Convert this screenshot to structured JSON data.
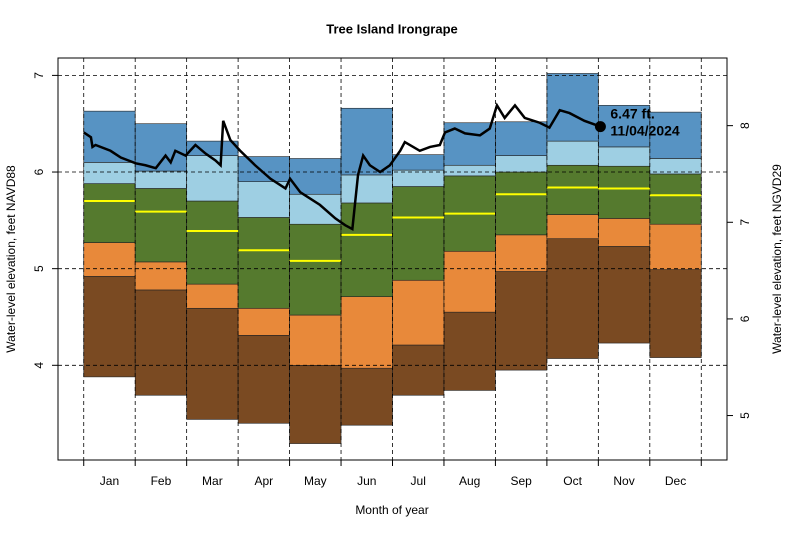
{
  "chart_data": {
    "type": "percentile-bands",
    "title": "Tree Island Irongrape",
    "x_label": "Month of year",
    "y_label": "Water-level elevation, feet NAVD88",
    "y2_label": "Water-level elevation, feet NGVD29",
    "categories": [
      "Jan",
      "Feb",
      "Mar",
      "Apr",
      "May",
      "Jun",
      "Jul",
      "Aug",
      "Sep",
      "Oct",
      "Nov",
      "Dec"
    ],
    "xlim": [
      -0.5,
      12.5
    ],
    "ylim": [
      3.02,
      7.18
    ],
    "yticks": [
      4,
      5,
      6,
      7
    ],
    "y2lim": [
      4.54,
      8.7
    ],
    "y2ticks": [
      5,
      6,
      7,
      8
    ],
    "grid": true,
    "levels": [
      [
        3.88,
        3.69,
        3.44,
        3.4,
        3.19,
        3.38,
        3.69,
        3.74,
        3.95,
        4.07,
        4.23,
        4.08
      ],
      [
        4.92,
        4.78,
        4.59,
        4.31,
        4.0,
        3.97,
        4.21,
        4.55,
        4.97,
        5.31,
        5.23,
        4.99
      ],
      [
        5.27,
        5.07,
        4.84,
        4.59,
        4.52,
        4.71,
        4.88,
        5.18,
        5.35,
        5.56,
        5.52,
        5.46
      ],
      [
        5.88,
        5.83,
        5.7,
        5.53,
        5.46,
        5.68,
        5.85,
        5.96,
        6.0,
        6.07,
        6.06,
        5.98
      ],
      [
        6.1,
        6.01,
        6.17,
        5.9,
        5.77,
        5.97,
        6.02,
        6.07,
        6.17,
        6.32,
        6.26,
        6.14
      ],
      [
        6.63,
        6.5,
        6.32,
        6.16,
        6.14,
        6.66,
        6.18,
        6.51,
        6.52,
        7.02,
        6.69,
        6.62
      ]
    ],
    "band_colors": [
      "#7a4a22",
      "#e8893a",
      "#557a2e",
      "#9ecfe3",
      "#5793c3"
    ],
    "median": {
      "color": "#ffff00",
      "values": [
        5.7,
        5.59,
        5.39,
        5.19,
        5.08,
        5.35,
        5.53,
        5.57,
        5.77,
        5.84,
        5.83,
        5.76
      ]
    },
    "line": {
      "color": "#000000",
      "x": [
        0,
        0.14,
        0.17,
        0.23,
        0.52,
        0.72,
        1.01,
        1.2,
        1.4,
        1.59,
        1.69,
        1.78,
        1.98,
        2.17,
        2.37,
        2.56,
        2.66,
        2.71,
        2.85,
        3.04,
        3.33,
        3.63,
        3.92,
        4.01,
        4.21,
        4.59,
        4.89,
        5.08,
        5.22,
        5.33,
        5.43,
        5.56,
        5.76,
        5.95,
        6.15,
        6.24,
        6.53,
        6.73,
        6.92,
        7.02,
        7.21,
        7.41,
        7.7,
        7.89,
        8.03,
        8.18,
        8.38,
        8.57,
        8.86,
        9.05,
        9.25,
        9.44,
        9.73,
        10.04
      ],
      "values": [
        6.41,
        6.36,
        6.26,
        6.28,
        6.22,
        6.15,
        6.09,
        6.07,
        6.04,
        6.17,
        6.1,
        6.22,
        6.17,
        6.28,
        6.19,
        6.12,
        6.07,
        6.53,
        6.33,
        6.22,
        6.07,
        5.93,
        5.83,
        5.93,
        5.79,
        5.66,
        5.52,
        5.45,
        5.41,
        5.97,
        6.17,
        6.07,
        6.0,
        6.07,
        6.22,
        6.31,
        6.22,
        6.26,
        6.28,
        6.41,
        6.45,
        6.4,
        6.38,
        6.45,
        6.69,
        6.56,
        6.69,
        6.56,
        6.51,
        6.46,
        6.64,
        6.61,
        6.53,
        6.47
      ]
    },
    "annotation": [
      "6.47 ft.",
      "11/04/2024"
    ]
  }
}
